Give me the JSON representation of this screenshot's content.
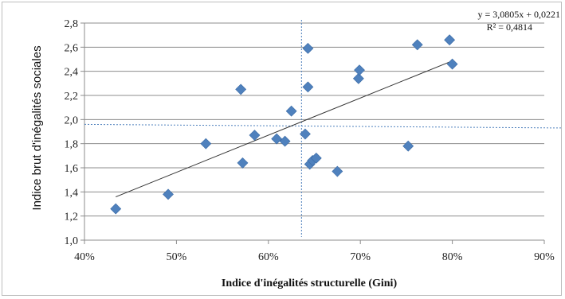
{
  "chart_data": {
    "type": "scatter",
    "title": "",
    "xlabel": "Indice d'inégalités structurelle (Gini)",
    "ylabel": "Indice brut d'inégalités sociales",
    "xlim": [
      0.4,
      0.9
    ],
    "ylim": [
      1.0,
      2.8
    ],
    "x_ticks": [
      0.4,
      0.5,
      0.6,
      0.7,
      0.8,
      0.9
    ],
    "x_tick_labels": [
      "40%",
      "50%",
      "60%",
      "70%",
      "80%",
      "90%"
    ],
    "y_ticks": [
      1.0,
      1.2,
      1.4,
      1.6,
      1.8,
      2.0,
      2.2,
      2.4,
      2.6,
      2.8
    ],
    "y_tick_labels": [
      "1,0",
      "1,2",
      "1,4",
      "1,6",
      "1,8",
      "2,0",
      "2,2",
      "2,4",
      "2,6",
      "2,8"
    ],
    "grid": "horizontal",
    "marker_color": "#4f81bd",
    "series": [
      {
        "points": [
          {
            "x": 0.434,
            "y": 1.26
          },
          {
            "x": 0.491,
            "y": 1.38
          },
          {
            "x": 0.532,
            "y": 1.8
          },
          {
            "x": 0.57,
            "y": 2.25
          },
          {
            "x": 0.572,
            "y": 1.64
          },
          {
            "x": 0.585,
            "y": 1.87
          },
          {
            "x": 0.609,
            "y": 1.84
          },
          {
            "x": 0.618,
            "y": 1.82
          },
          {
            "x": 0.625,
            "y": 2.07
          },
          {
            "x": 0.64,
            "y": 1.88
          },
          {
            "x": 0.643,
            "y": 2.27
          },
          {
            "x": 0.643,
            "y": 2.59
          },
          {
            "x": 0.645,
            "y": 1.63
          },
          {
            "x": 0.648,
            "y": 1.66
          },
          {
            "x": 0.652,
            "y": 1.68
          },
          {
            "x": 0.675,
            "y": 1.57
          },
          {
            "x": 0.698,
            "y": 2.34
          },
          {
            "x": 0.699,
            "y": 2.41
          },
          {
            "x": 0.752,
            "y": 1.78
          },
          {
            "x": 0.762,
            "y": 2.62
          },
          {
            "x": 0.797,
            "y": 2.66
          },
          {
            "x": 0.8,
            "y": 2.46
          }
        ]
      }
    ],
    "trendline": {
      "equation": "y = 3,0805x + 0,0221",
      "r2_label": "R² = 0,4814",
      "slope": 3.0805,
      "intercept": 0.0221,
      "x_range": [
        0.434,
        0.8
      ],
      "color": "#333333"
    },
    "reference_lines": [
      {
        "orientation": "vertical",
        "x": 0.636,
        "color": "#4f81bd",
        "style": "dashed"
      },
      {
        "orientation": "horizontal",
        "y_left": 1.96,
        "y_right": 1.93,
        "color": "#4f81bd",
        "style": "dashed"
      }
    ]
  }
}
